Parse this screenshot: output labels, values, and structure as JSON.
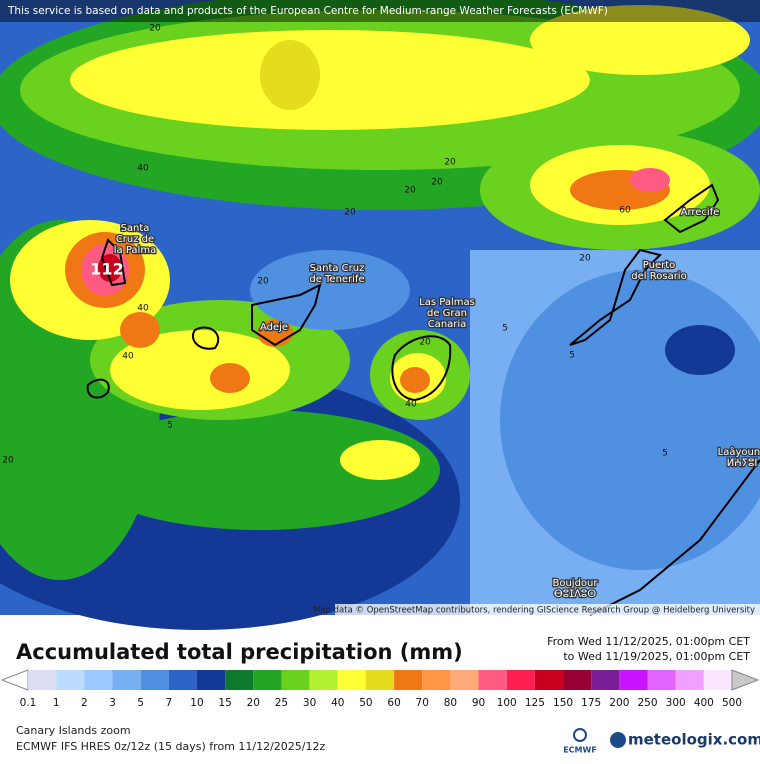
{
  "map": {
    "attribution": "This service is based on data and products of the European Centre for Medium-range Weather Forecasts (ECMWF)",
    "credit": "Map data © OpenStreetMap contributors, rendering GIScience Research Group @ Heidelberg University",
    "max_label": "112",
    "places": [
      {
        "lines": [
          "Santa",
          "Cruz de",
          "la Palma"
        ]
      },
      {
        "lines": [
          "Santa Cruz",
          "de Tenerife"
        ]
      },
      {
        "lines": [
          "Adeje"
        ]
      },
      {
        "lines": [
          "Las Palmas",
          "de Gran",
          "Canaria"
        ]
      },
      {
        "lines": [
          "Puerto",
          "del Rosario"
        ]
      },
      {
        "lines": [
          "Arrecife"
        ]
      },
      {
        "lines": [
          "Laâyoune",
          "ⵍⵄⵢⵓⵏ"
        ]
      },
      {
        "lines": [
          "Boujdour",
          "ⴱⵓⵊⴷⵓⵔ"
        ]
      }
    ],
    "contours": [
      "20",
      "40",
      "20",
      "20",
      "20",
      "20",
      "60",
      "20",
      "20",
      "40",
      "40",
      "5",
      "5",
      "20",
      "40",
      "5",
      "20",
      "5"
    ]
  },
  "header": {
    "title": "Accumulated total precipitation (mm)",
    "from": "From Wed 11/12/2025, 01:00pm CET",
    "to": "to Wed 11/19/2025, 01:00pm CET"
  },
  "legend": {
    "labels": [
      "0.1",
      "1",
      "2",
      "3",
      "5",
      "7",
      "10",
      "15",
      "20",
      "25",
      "30",
      "40",
      "50",
      "60",
      "70",
      "80",
      "90",
      "100",
      "125",
      "150",
      "175",
      "200",
      "250",
      "300",
      "400",
      "500"
    ],
    "colors": [
      "#ffffff",
      "#dcdcf5",
      "#bcdcff",
      "#9cc8ff",
      "#78aef2",
      "#5090e0",
      "#2c64c8",
      "#143896",
      "#0e7a2e",
      "#22a624",
      "#6ad21e",
      "#b4f032",
      "#ffff33",
      "#e6dc1e",
      "#f07814",
      "#ff9646",
      "#ffaa78",
      "#ff5a82",
      "#ff1e50",
      "#c8001e",
      "#960032",
      "#7a1e96",
      "#c814ff",
      "#e264ff",
      "#f0a0ff",
      "#fae6ff",
      "#c8c8c8"
    ]
  },
  "footer": {
    "region": "Canary Islands zoom",
    "model": "ECMWF IFS HRES 0z/12z (15 days) from 11/12/2025/12z",
    "logo1": "ECMWF",
    "logo2": "meteologix.com"
  }
}
